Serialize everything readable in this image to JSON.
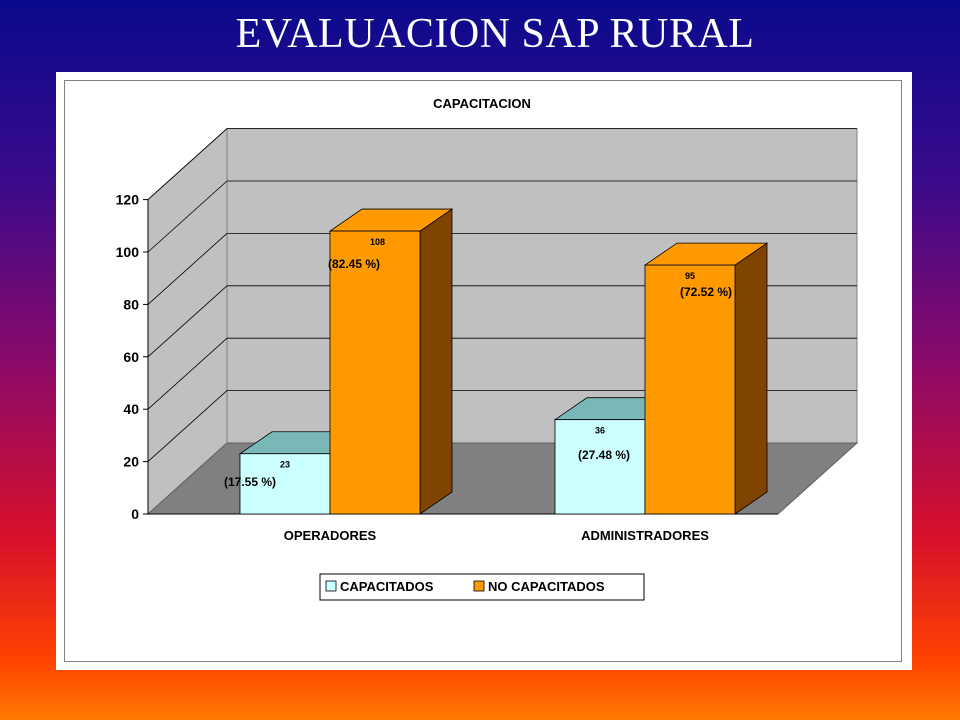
{
  "slide": {
    "title": "EVALUACION SAP  RURAL"
  },
  "colors": {
    "capacitados": "#ccffff",
    "capacitados_top": "#7ab8b8",
    "no_capacitados": "#ff9900",
    "no_capacitados_side": "#7f4400",
    "wall": "#c0c0c0",
    "floor": "#808080"
  },
  "chart_data": {
    "type": "bar",
    "title": "CAPACITACION",
    "categories": [
      "OPERADORES",
      "ADMINISTRADORES"
    ],
    "series": [
      {
        "name": "CAPACITADOS",
        "values": [
          23,
          36
        ],
        "value_labels": [
          "23",
          "36"
        ],
        "percent_labels": [
          "(17.55 %)",
          "(27.48 %)"
        ]
      },
      {
        "name": "NO CAPACITADOS",
        "values": [
          108,
          95
        ],
        "value_labels": [
          "108",
          "95"
        ],
        "percent_labels": [
          "(82.45 %)",
          "(72.52 %)"
        ]
      }
    ],
    "y_ticks": [
      "0",
      "20",
      "40",
      "60",
      "80",
      "100",
      "120"
    ],
    "ylim": [
      0,
      120
    ],
    "grid": true,
    "legend_position": "bottom",
    "style": "3d-column"
  }
}
